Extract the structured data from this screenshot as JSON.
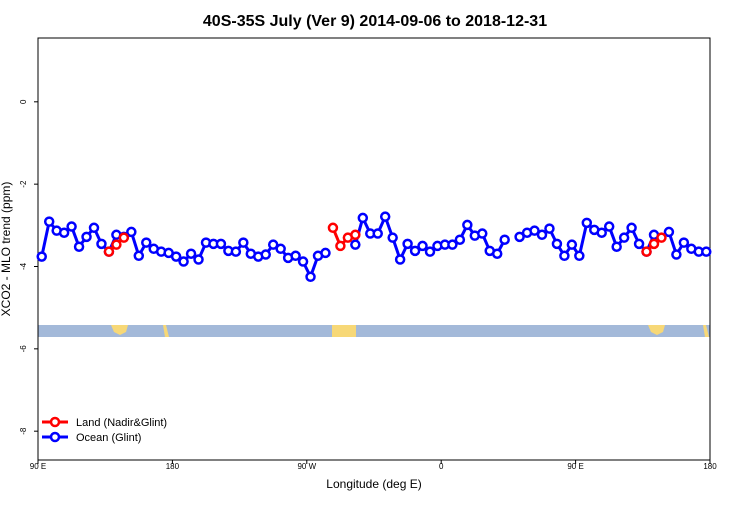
{
  "chart_data": {
    "type": "line",
    "title": "40S-35S July (Ver 9)   2014-09-06 to 2018-12-31",
    "x_label": "Longitude (deg E)",
    "y_label": "XCO2 - MLO trend (ppm)",
    "xlim": [
      90,
      540
    ],
    "xticks": [
      {
        "value": 90,
        "label": "90 E"
      },
      {
        "value": 180,
        "label": "180"
      },
      {
        "value": 270,
        "label": "90 W"
      },
      {
        "value": 360,
        "label": "0"
      },
      {
        "value": 450,
        "label": "90 E"
      },
      {
        "value": 540,
        "label": "180"
      }
    ],
    "ylim": [
      -8.7,
      1.55
    ],
    "yticks": [
      0,
      -2,
      -4,
      -6,
      -8
    ],
    "legend": "bottom-left",
    "x": [
      92.5,
      97.5,
      102.5,
      107.5,
      112.5,
      117.5,
      122.5,
      127.5,
      132.5,
      137.5,
      142.5,
      147.5,
      152.5,
      157.5,
      162.5,
      167.5,
      172.5,
      177.5,
      182.5,
      187.5,
      192.5,
      197.5,
      202.5,
      207.5,
      212.5,
      217.5,
      222.5,
      227.5,
      232.5,
      237.5,
      242.5,
      247.5,
      252.5,
      257.5,
      262.5,
      267.5,
      272.5,
      277.5,
      282.5,
      287.5,
      292.5,
      297.5,
      302.5,
      307.5,
      312.5,
      317.5,
      322.5,
      327.5,
      332.5,
      337.5,
      342.5,
      347.5,
      352.5,
      357.5,
      362.5,
      367.5,
      372.5,
      377.5,
      382.5,
      387.5,
      392.5,
      397.5,
      402.5,
      407.5,
      412.5,
      417.5,
      422.5,
      427.5,
      432.5,
      437.5,
      442.5,
      447.5,
      452.5,
      457.5,
      462.5,
      467.5,
      472.5,
      477.5,
      482.5,
      487.5,
      492.5,
      497.5,
      502.5,
      507.5,
      512.5,
      517.5,
      522.5,
      527.5,
      532.5,
      537.5
    ],
    "series": [
      {
        "name": "Land (Nadir&Glint)",
        "color": "#ff0000",
        "values": [
          null,
          null,
          null,
          null,
          null,
          null,
          null,
          null,
          null,
          -3.64,
          -3.47,
          -3.3,
          null,
          null,
          null,
          null,
          null,
          null,
          null,
          null,
          null,
          null,
          null,
          null,
          null,
          null,
          null,
          null,
          null,
          null,
          null,
          null,
          null,
          null,
          null,
          null,
          null,
          null,
          null,
          -3.06,
          -3.5,
          -3.3,
          -3.23,
          null,
          null,
          null,
          null,
          null,
          null,
          null,
          null,
          null,
          null,
          null,
          null,
          null,
          null,
          null,
          null,
          null,
          null,
          null,
          null,
          null,
          null,
          null,
          null,
          null,
          null,
          null,
          null,
          null,
          null,
          null,
          null,
          null,
          null,
          null,
          null,
          null,
          null,
          -3.64,
          -3.45,
          -3.3,
          null,
          null,
          null,
          null,
          null,
          null
        ]
      },
      {
        "name": "Ocean (Glint)",
        "color": "#0000ff",
        "values": [
          -3.76,
          -2.91,
          -3.13,
          -3.18,
          -3.03,
          -3.52,
          -3.28,
          -3.06,
          -3.45,
          -3.64,
          -3.23,
          -3.28,
          -3.16,
          -3.74,
          -3.42,
          -3.57,
          -3.64,
          -3.67,
          -3.76,
          -3.88,
          -3.69,
          -3.83,
          -3.42,
          -3.45,
          -3.45,
          -3.62,
          -3.64,
          -3.42,
          -3.69,
          -3.76,
          -3.71,
          -3.47,
          -3.57,
          -3.79,
          -3.74,
          -3.88,
          -4.25,
          -3.74,
          -3.67,
          null,
          null,
          null,
          -3.47,
          -2.82,
          -3.2,
          -3.2,
          -2.79,
          -3.3,
          -3.83,
          -3.45,
          -3.62,
          -3.5,
          -3.64,
          -3.5,
          -3.47,
          -3.47,
          -3.35,
          -2.99,
          -3.25,
          -3.2,
          -3.62,
          -3.69,
          -3.35,
          null,
          -3.28,
          -3.18,
          -3.13,
          -3.23,
          -3.08,
          -3.45,
          -3.74,
          -3.47,
          -3.74,
          -2.94,
          -3.11,
          -3.18,
          -3.03,
          -3.52,
          -3.3,
          -3.06,
          -3.45,
          -3.64,
          -3.23,
          null,
          -3.16,
          -3.71,
          -3.42,
          -3.57,
          -3.64,
          -3.64
        ]
      }
    ]
  }
}
